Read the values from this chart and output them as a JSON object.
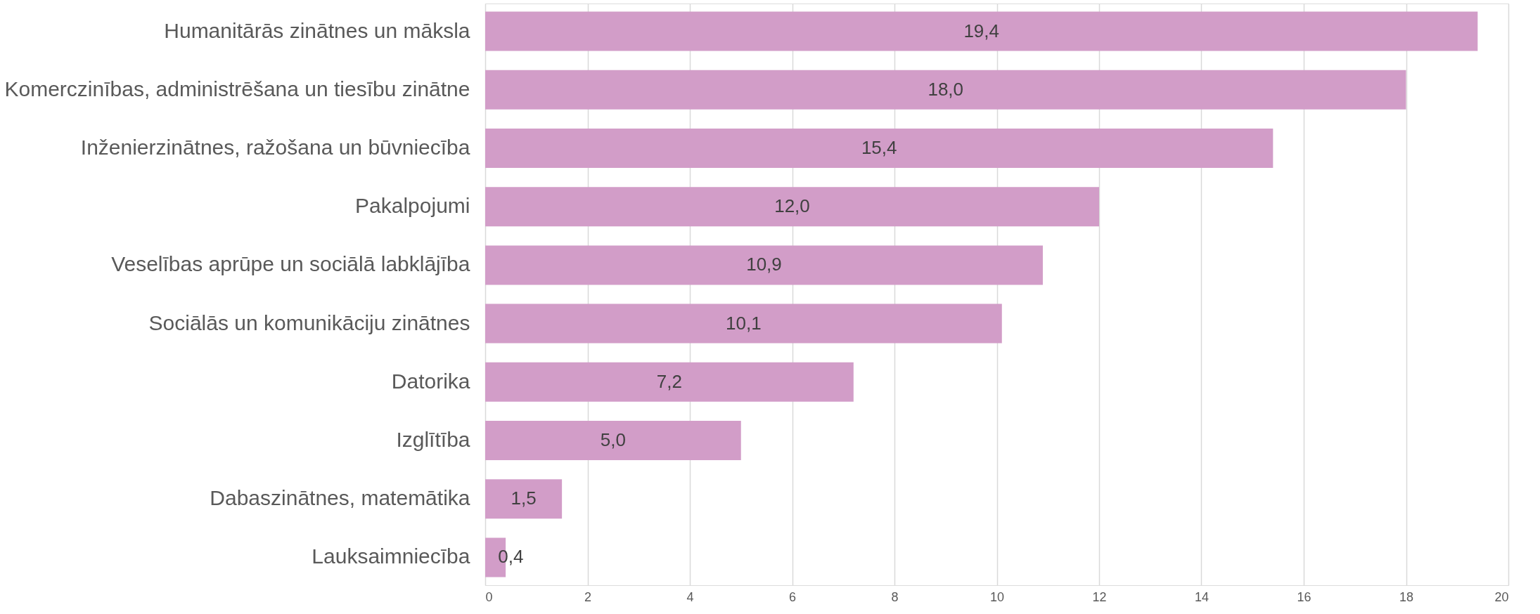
{
  "chart_data": {
    "type": "bar",
    "orientation": "horizontal",
    "categories": [
      "Humanitārās zinātnes un māksla",
      "Komerczinības, administrēšana un tiesību zinātne",
      "Inženierzinātnes, ražošana un būvniecība",
      "Pakalpojumi",
      "Veselības aprūpe un sociālā labklājība",
      "Sociālās un komunikāciju zinātnes",
      "Datorika",
      "Izglītība",
      "Dabaszinātnes, matemātika",
      "Lauksaimniecība"
    ],
    "values": [
      19.4,
      18.0,
      15.4,
      12.0,
      10.9,
      10.1,
      7.2,
      5.0,
      1.5,
      0.4
    ],
    "value_labels": [
      "19,4",
      "18,0",
      "15,4",
      "12,0",
      "10,9",
      "10,1",
      "7,2",
      "5,0",
      "1,5",
      "0,4"
    ],
    "color": "#d29dc8",
    "xlim": [
      0,
      20
    ],
    "xticks": [
      0,
      2,
      4,
      6,
      8,
      10,
      12,
      14,
      16,
      18,
      20
    ],
    "grid": "x"
  }
}
